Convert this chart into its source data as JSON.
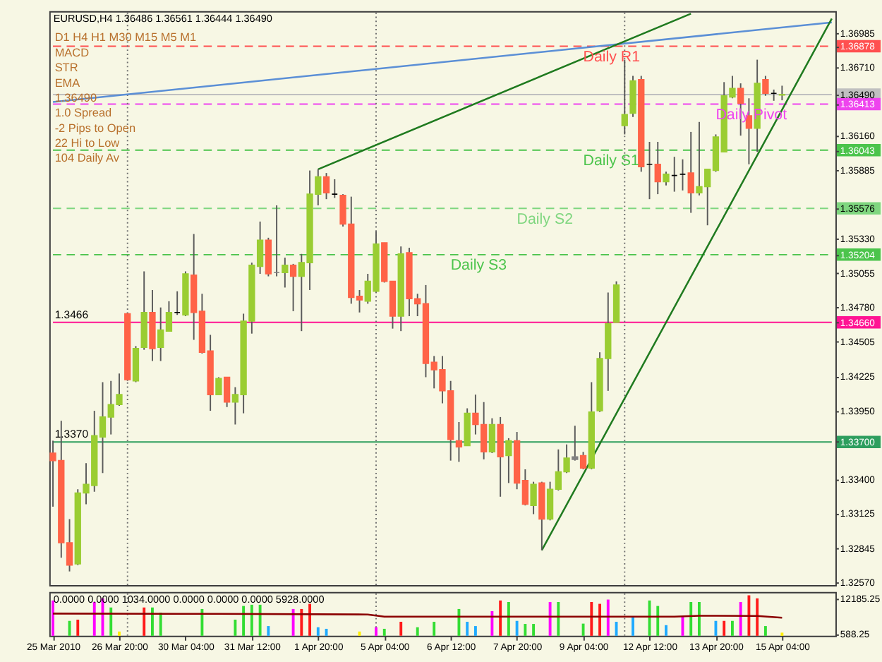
{
  "chart_data": [
    {
      "type": "candlestick",
      "title": "EURUSD,H4 1.36486 1.36561 1.36444 1.36490",
      "categories": [
        "25 Mar 2010",
        null,
        null,
        null,
        null,
        null,
        null,
        null,
        "26 Mar 20:00",
        null,
        null,
        null,
        null,
        null,
        null,
        null,
        "30 Mar 04:00",
        null,
        null,
        null,
        null,
        null,
        null,
        null,
        "31 Mar 12:00",
        null,
        null,
        null,
        null,
        null,
        null,
        null,
        "1 Apr 20:00",
        null,
        null,
        null,
        null,
        null,
        null,
        null,
        "5 Apr 04:00",
        null,
        null,
        null,
        null,
        null,
        null,
        null,
        "6 Apr 12:00",
        null,
        null,
        null,
        null,
        null,
        null,
        null,
        "7 Apr 20:00",
        null,
        null,
        null,
        null,
        null,
        null,
        null,
        "9 Apr 04:00",
        null,
        null,
        null,
        null,
        null,
        null,
        null,
        "12 Apr 12:00",
        null,
        null,
        null,
        null,
        null,
        null,
        null,
        "13 Apr 20:00",
        null,
        null,
        null,
        null,
        null,
        null,
        null,
        "15 Apr 04:00",
        null,
        null,
        null,
        null,
        null,
        null
      ],
      "ohlc": [
        [
          1.3361,
          1.3371,
          1.3318,
          1.3355
        ],
        [
          1.3355,
          1.3387,
          1.3277,
          1.3289
        ],
        [
          1.3289,
          1.3308,
          1.3266,
          1.3271
        ],
        [
          1.3272,
          1.3332,
          1.3271,
          1.3329
        ],
        [
          1.3329,
          1.3353,
          1.332,
          1.3336
        ],
        [
          1.3335,
          1.3395,
          1.333,
          1.3375
        ],
        [
          1.3374,
          1.3418,
          1.3345,
          1.339
        ],
        [
          1.339,
          1.3419,
          1.3376,
          1.34
        ],
        [
          1.34,
          1.3425,
          1.3399,
          1.3408
        ],
        [
          1.3473,
          1.3474,
          1.3419,
          1.342
        ],
        [
          1.3419,
          1.3447,
          1.3418,
          1.3445
        ],
        [
          1.3446,
          1.3507,
          1.3444,
          1.3474
        ],
        [
          1.3474,
          1.3492,
          1.3435,
          1.3445
        ],
        [
          1.3446,
          1.3478,
          1.3435,
          1.346
        ],
        [
          1.3459,
          1.3483,
          1.3459,
          1.3474
        ],
        [
          1.3474,
          1.3491,
          1.3472,
          1.3474
        ],
        [
          1.3472,
          1.3507,
          1.3471,
          1.3505
        ],
        [
          1.3504,
          1.3537,
          1.3452,
          1.3474
        ],
        [
          1.3475,
          1.3489,
          1.3441,
          1.3442
        ],
        [
          1.3443,
          1.3456,
          1.3395,
          1.3408
        ],
        [
          1.3408,
          1.3422,
          1.3408,
          1.3421
        ],
        [
          1.3422,
          1.3422,
          1.3398,
          1.3402
        ],
        [
          1.3402,
          1.3414,
          1.3384,
          1.3408
        ],
        [
          1.3408,
          1.3473,
          1.3393,
          1.3467
        ],
        [
          1.3467,
          1.3514,
          1.3457,
          1.3512
        ],
        [
          1.3511,
          1.3547,
          1.3505,
          1.3532
        ],
        [
          1.3532,
          1.3534,
          1.3503,
          1.3505
        ],
        [
          1.3506,
          1.356,
          1.3503,
          1.3506
        ],
        [
          1.3506,
          1.3518,
          1.3494,
          1.3512
        ],
        [
          1.3512,
          1.3513,
          1.3475,
          1.3503
        ],
        [
          1.3503,
          1.3521,
          1.3459,
          1.3514
        ],
        [
          1.3514,
          1.3588,
          1.3492,
          1.3569
        ],
        [
          1.3569,
          1.3589,
          1.356,
          1.3583
        ],
        [
          1.3583,
          1.3586,
          1.3565,
          1.357
        ],
        [
          1.3569,
          1.3581,
          1.3566,
          1.3569
        ],
        [
          1.3568,
          1.3569,
          1.3543,
          1.3545
        ],
        [
          1.3545,
          1.3567,
          1.3481,
          1.3486
        ],
        [
          1.3487,
          1.3492,
          1.3474,
          1.3484
        ],
        [
          1.3483,
          1.3505,
          1.3481,
          1.3499
        ],
        [
          1.3491,
          1.3539,
          1.349,
          1.3529
        ],
        [
          1.353,
          1.353,
          1.3498,
          1.3499
        ],
        [
          1.3499,
          1.3499,
          1.3461,
          1.3471
        ],
        [
          1.3471,
          1.3527,
          1.3459,
          1.3521
        ],
        [
          1.3522,
          1.3526,
          1.3471,
          1.3485
        ],
        [
          1.3485,
          1.3489,
          1.3471,
          1.3481
        ],
        [
          1.3481,
          1.3496,
          1.3422,
          1.3433
        ],
        [
          1.3434,
          1.3439,
          1.3413,
          1.3428
        ],
        [
          1.3428,
          1.3439,
          1.3401,
          1.3411
        ],
        [
          1.3411,
          1.3419,
          1.3355,
          1.3372
        ],
        [
          1.3371,
          1.3386,
          1.3354,
          1.3366
        ],
        [
          1.3367,
          1.3397,
          1.3367,
          1.3393
        ],
        [
          1.3393,
          1.3408,
          1.3376,
          1.3384
        ],
        [
          1.3384,
          1.3402,
          1.3356,
          1.3362
        ],
        [
          1.3362,
          1.3389,
          1.3361,
          1.3384
        ],
        [
          1.3384,
          1.339,
          1.3326,
          1.3358
        ],
        [
          1.3359,
          1.3373,
          1.3337,
          1.3371
        ],
        [
          1.3371,
          1.3378,
          1.3332,
          1.3337
        ],
        [
          1.3339,
          1.3348,
          1.3319,
          1.332
        ],
        [
          1.3319,
          1.3338,
          1.3312,
          1.3336
        ],
        [
          1.3337,
          1.3338,
          1.3283,
          1.3308
        ],
        [
          1.3308,
          1.3338,
          1.3307,
          1.3332
        ],
        [
          1.3332,
          1.3364,
          1.3331,
          1.3346
        ],
        [
          1.3346,
          1.3368,
          1.3345,
          1.3357
        ],
        [
          1.3356,
          1.3383,
          1.3355,
          1.3358
        ],
        [
          1.3359,
          1.3362,
          1.3348,
          1.3349
        ],
        [
          1.3349,
          1.3418,
          1.3348,
          1.3394
        ],
        [
          1.3395,
          1.3442,
          1.3394,
          1.3437
        ],
        [
          1.3437,
          1.349,
          1.3411,
          1.3465
        ],
        [
          1.3466,
          1.3499,
          1.3466,
          1.3496
        ],
        [
          1.3624,
          1.3677,
          1.3617,
          1.3633
        ],
        [
          1.3634,
          1.3664,
          1.3631,
          1.366
        ],
        [
          1.3661,
          1.3664,
          1.3587,
          1.3591
        ],
        [
          1.3593,
          1.3611,
          1.3565,
          1.3593
        ],
        [
          1.3593,
          1.3611,
          1.3569,
          1.3579
        ],
        [
          1.3579,
          1.3587,
          1.3576,
          1.3585
        ],
        [
          1.3584,
          1.3599,
          1.3571,
          1.3584
        ],
        [
          1.3585,
          1.3597,
          1.3572,
          1.3585
        ],
        [
          1.3586,
          1.3619,
          1.3554,
          1.357
        ],
        [
          1.357,
          1.3627,
          1.3568,
          1.3575
        ],
        [
          1.3575,
          1.3589,
          1.3544,
          1.3589
        ],
        [
          1.3588,
          1.3617,
          1.3587,
          1.3615
        ],
        [
          1.3603,
          1.3659,
          1.3603,
          1.3648
        ],
        [
          1.3647,
          1.3664,
          1.3646,
          1.3654
        ],
        [
          1.3654,
          1.3658,
          1.3616,
          1.3642
        ],
        [
          1.3632,
          1.3646,
          1.3593,
          1.3622
        ],
        [
          1.3622,
          1.3677,
          1.3603,
          1.3658
        ],
        [
          1.3661,
          1.3664,
          1.3648,
          1.365
        ],
        [
          1.365,
          1.3653,
          1.3644,
          1.365
        ],
        [
          1.36486,
          1.36561,
          1.36444,
          1.3649
        ],
        null,
        null,
        null,
        null,
        null,
        null
      ],
      "colors": [
        "#ff6347",
        "#ff6347",
        "#ff6347",
        "#9acd32",
        "#9acd32",
        "#9acd32",
        "#9acd32",
        "#9acd32",
        "#9acd32",
        "#ff6347",
        "#9acd32",
        "#9acd32",
        "#ff6347",
        "#9acd32",
        "#9acd32",
        "#000000",
        "#9acd32",
        "#ff6347",
        "#ff6347",
        "#ff6347",
        "#9acd32",
        "#ff6347",
        "#9acd32",
        "#9acd32",
        "#9acd32",
        "#9acd32",
        "#ff6347",
        "#808080",
        "#9acd32",
        "#ff6347",
        "#9acd32",
        "#9acd32",
        "#9acd32",
        "#ff6347",
        "#000000",
        "#ff6347",
        "#ff6347",
        "#ff6347",
        "#9acd32",
        "#9acd32",
        "#ff6347",
        "#ff6347",
        "#9acd32",
        "#ff6347",
        "#ff6347",
        "#ff6347",
        "#ff6347",
        "#ff6347",
        "#ff6347",
        "#ff6347",
        "#9acd32",
        "#ff6347",
        "#ff6347",
        "#9acd32",
        "#ff6347",
        "#9acd32",
        "#ff6347",
        "#ff6347",
        "#9acd32",
        "#ff6347",
        "#9acd32",
        "#9acd32",
        "#9acd32",
        "#808080",
        "#ff6347",
        "#9acd32",
        "#9acd32",
        "#9acd32",
        "#9acd32",
        "#9acd32",
        "#9acd32",
        "#ff6347",
        "#000000",
        "#ff6347",
        "#9acd32",
        "#000000",
        "#000000",
        "#ff6347",
        "#9acd32",
        "#9acd32",
        "#9acd32",
        "#9acd32",
        "#9acd32",
        "#ff6347",
        "#ff6347",
        "#9acd32",
        "#ff6347",
        "#000000",
        "#9acd32",
        null,
        null,
        null,
        null,
        null,
        null
      ],
      "ylim": [
        1.3255,
        1.3716
      ],
      "yticks": [
        1.36985,
        1.36878,
        {
          "value": 1.3671,
          "label": "1.36710"
        },
        {
          "value": 1.3649,
          "label": "1.36490"
        },
        1.36413,
        {
          "value": 1.3616,
          "label": "1.36160"
        },
        1.36043,
        1.35885,
        1.35576,
        {
          "value": 1.3533,
          "label": "1.35330"
        },
        1.35204,
        1.35055,
        {
          "value": 1.3478,
          "label": "1.34780"
        },
        {
          "value": 1.3466,
          "label": "1.34660"
        },
        1.34505,
        1.34225,
        {
          "value": 1.3395,
          "label": "1.33950"
        },
        {
          "value": 1.337,
          "label": "1.33700"
        },
        {
          "value": 1.334,
          "label": "1.33400"
        },
        1.33125,
        1.32845,
        {
          "value": 1.3257,
          "label": "1.32570"
        }
      ],
      "tick_labels": "y",
      "grid": "x",
      "ref_lines": [
        {
          "axis": "y",
          "value": 1.36878,
          "color": "#ff5050",
          "line_style": "dashed"
        },
        {
          "axis": "y",
          "value": 1.3649,
          "color": "#c0c0c0"
        },
        {
          "axis": "y",
          "value": 1.36413,
          "color": "#ee44ee",
          "line_style": "dashed"
        },
        {
          "axis": "y",
          "value": 1.36043,
          "color": "#4cc44c",
          "line_style": "dashed"
        },
        {
          "axis": "y",
          "value": 1.35576,
          "color": "#7fd67f",
          "line_style": "dashed"
        },
        {
          "axis": "y",
          "value": 1.35204,
          "color": "#4cc44c",
          "line_style": "dashed"
        },
        {
          "axis": "y",
          "value": 1.3466,
          "color": "#ff1493",
          "label": "1.3466"
        },
        {
          "axis": "y",
          "value": 1.337,
          "color": "#2e9e5e",
          "label": "1.3370"
        }
      ],
      "series": [
        {
          "type": "line",
          "color": "#5b8fd6",
          "values": [
            1.3643,
            null,
            null,
            null,
            null,
            null,
            null,
            null,
            null,
            null,
            null,
            null,
            null,
            null,
            null,
            null,
            null,
            null,
            null,
            null,
            null,
            null,
            null,
            null,
            null,
            null,
            null,
            null,
            null,
            null,
            null,
            null,
            null,
            null,
            null,
            null,
            null,
            null,
            null,
            null,
            null,
            null,
            null,
            null,
            null,
            null,
            null,
            null,
            null,
            null,
            null,
            null,
            null,
            null,
            null,
            null,
            null,
            null,
            null,
            null,
            null,
            null,
            null,
            null,
            null,
            null,
            null,
            null,
            null,
            null,
            null,
            null,
            null,
            null,
            null,
            null,
            null,
            null,
            null,
            null,
            null,
            null,
            null,
            null,
            null,
            null,
            null,
            null,
            null,
            null,
            null,
            null,
            null,
            null,
            1.3707
          ]
        },
        {
          "type": "line",
          "color": "#1f7a1f",
          "values": [
            null,
            null,
            null,
            null,
            null,
            null,
            null,
            null,
            null,
            null,
            null,
            null,
            null,
            null,
            null,
            null,
            null,
            null,
            null,
            null,
            null,
            null,
            null,
            null,
            null,
            null,
            null,
            null,
            null,
            null,
            null,
            null,
            1.3589,
            null,
            null,
            null,
            null,
            null,
            null,
            null,
            null,
            null,
            null,
            null,
            null,
            null,
            null,
            null,
            null,
            null,
            null,
            null,
            null,
            null,
            null,
            null,
            null,
            null,
            null,
            null,
            null,
            null,
            null,
            null,
            null,
            null,
            null,
            null,
            null,
            null,
            null,
            null,
            null,
            null,
            null,
            null,
            null,
            1.3714,
            null,
            null,
            null,
            null,
            null,
            null,
            null,
            null,
            null,
            null,
            null,
            null,
            null,
            null,
            null,
            null,
            null
          ]
        },
        {
          "type": "line",
          "color": "#1f7a1f",
          "values": [
            null,
            null,
            null,
            null,
            null,
            null,
            null,
            null,
            null,
            null,
            null,
            null,
            null,
            null,
            null,
            null,
            null,
            null,
            null,
            null,
            null,
            null,
            null,
            null,
            null,
            null,
            null,
            null,
            null,
            null,
            null,
            null,
            null,
            null,
            null,
            null,
            null,
            null,
            null,
            null,
            null,
            null,
            null,
            null,
            null,
            null,
            null,
            null,
            null,
            null,
            null,
            null,
            null,
            null,
            null,
            null,
            null,
            null,
            null,
            1.3283,
            null,
            null,
            null,
            null,
            null,
            null,
            null,
            null,
            null,
            null,
            null,
            null,
            null,
            null,
            null,
            null,
            null,
            null,
            null,
            null,
            null,
            null,
            null,
            null,
            null,
            null,
            null,
            null,
            null,
            null,
            null,
            null,
            null,
            null,
            1.371
          ]
        }
      ],
      "annotations": [
        {
          "text": "Daily R1",
          "x": "9 Apr 04:00",
          "y": 1.36878
        },
        {
          "text": "Daily Pivot",
          "x": "13 Apr 20:00",
          "y": 1.36413
        },
        {
          "text": "Daily S1",
          "x": "9 Apr 04:00",
          "y": 1.36043
        },
        {
          "text": "Daily S2",
          "x": "7 Apr 20:00",
          "y": 1.35576
        },
        {
          "text": "Daily S3",
          "x": "6 Apr 12:00",
          "y": 1.35204
        },
        "D1 H4 H1 M30 M15 M5 M1",
        "MACD",
        "STR",
        "EMA",
        "1.36490",
        "1.0 Spread",
        "-2 Pips to Open",
        "22 Hi to Low",
        "104 Daily Av"
      ]
    },
    {
      "type": "bar",
      "title": "0.0000 0.0000 1034.0000 0.0000 0.0000 0.0000 5928.0000",
      "categories": [
        "25 Mar 2010",
        null,
        null,
        null,
        null,
        null,
        null,
        null,
        "26 Mar 20:00",
        null,
        null,
        null,
        null,
        null,
        null,
        null,
        "30 Mar 04:00",
        null,
        null,
        null,
        null,
        null,
        null,
        null,
        "31 Mar 12:00",
        null,
        null,
        null,
        null,
        null,
        null,
        null,
        "1 Apr 20:00",
        null,
        null,
        null,
        null,
        null,
        null,
        null,
        "5 Apr 04:00",
        null,
        null,
        null,
        null,
        null,
        null,
        null,
        "6 Apr 12:00",
        null,
        null,
        null,
        null,
        null,
        null,
        null,
        "7 Apr 20:00",
        null,
        null,
        null,
        null,
        null,
        null,
        null,
        "9 Apr 04:00",
        null,
        null,
        null,
        null,
        null,
        null,
        null,
        "12 Apr 12:00",
        null,
        null,
        null,
        null,
        null,
        null,
        null,
        "13 Apr 20:00",
        null,
        null,
        null,
        null,
        null,
        null,
        null,
        "15 Apr 04:00",
        null,
        null,
        null,
        null,
        null,
        null
      ],
      "ylim": [
        0,
        14400
      ],
      "yticks": [
        12185.25,
        588.25
      ],
      "grid": "x",
      "series": [
        {
          "type": "bar",
          "values": [
            11600,
            null,
            4900,
            5300,
            null,
            11100,
            12300,
            9300,
            1400,
            null,
            null,
            9300,
            9300,
            7600,
            null,
            null,
            null,
            null,
            8800,
            null,
            null,
            null,
            5300,
            9800,
            10200,
            10200,
            3200,
            null,
            null,
            8800,
            8800,
            10500,
            2800,
            2300,
            null,
            null,
            null,
            1400,
            null,
            2800,
            2300,
            null,
            4600,
            null,
            2800,
            null,
            4600,
            null,
            null,
            8800,
            4600,
            3200,
            null,
            8100,
            11600,
            11100,
            4900,
            3900,
            3900,
            null,
            11100,
            11100,
            null,
            null,
            4000,
            11100,
            10500,
            11900,
            4600,
            null,
            6300,
            null,
            11600,
            9800,
            3500,
            null,
            6300,
            11100,
            11100,
            null,
            4900,
            4900,
            4900,
            11100,
            13300,
            12300,
            3200,
            null,
            1034,
            null,
            null,
            null,
            null,
            null,
            null
          ],
          "colors": [
            "#ff00ff",
            null,
            "#33dd33",
            "#ff1a1a",
            null,
            "#ff00ff",
            "#ff00ff",
            "#33dd33",
            "#ffee00",
            null,
            null,
            "#ff1a1a",
            "#33dd33",
            "#33dd33",
            null,
            null,
            null,
            null,
            "#33dd33",
            null,
            null,
            null,
            "#33dd33",
            "#33dd33",
            "#33dd33",
            "#33dd33",
            "#1eaaff",
            null,
            null,
            "#ff00ff",
            "#ff1a1a",
            "#ff1a1a",
            "#1eaaff",
            "#1eaaff",
            null,
            null,
            null,
            "#ffee00",
            null,
            "#ff00ff",
            "#33dd33",
            null,
            "#ff1a1a",
            null,
            "#33dd33",
            null,
            "#33dd33",
            null,
            null,
            "#33dd33",
            "#1eaaff",
            "#1eaaff",
            null,
            "#ff00ff",
            "#ff1a1a",
            "#33dd33",
            "#1eaaff",
            "#33dd33",
            "#33dd33",
            null,
            "#ff00ff",
            "#33dd33",
            null,
            null,
            "#33dd33",
            "#ff1a1a",
            "#ff1a1a",
            "#ff00ff",
            "#1eaaff",
            null,
            "#1eaaff",
            null,
            "#33dd33",
            "#33dd33",
            "#1eaaff",
            null,
            "#ff00ff",
            "#33dd33",
            "#33dd33",
            null,
            "#1eaaff",
            "#ff1a1a",
            "#33dd33",
            "#ff00ff",
            "#ff1a1a",
            "#ff1a1a",
            "#33dd33",
            null,
            "#ffee00",
            null,
            null,
            null,
            null,
            null,
            null
          ]
        },
        {
          "type": "line",
          "color": "#8b0000",
          "values": [
            7300,
            null,
            null,
            null,
            null,
            null,
            null,
            null,
            null,
            null,
            null,
            null,
            null,
            null,
            null,
            null,
            null,
            null,
            null,
            null,
            7200,
            null,
            null,
            null,
            null,
            null,
            null,
            null,
            null,
            null,
            null,
            null,
            null,
            null,
            null,
            null,
            null,
            null,
            7000,
            null,
            6300,
            null,
            null,
            null,
            null,
            null,
            null,
            null,
            null,
            null,
            null,
            null,
            null,
            null,
            null,
            null,
            null,
            null,
            null,
            null,
            null,
            null,
            null,
            null,
            null,
            null,
            null,
            null,
            null,
            null,
            null,
            null,
            null,
            null,
            null,
            6300,
            null,
            null,
            6600,
            null,
            null,
            null,
            null,
            null,
            null,
            6500,
            null,
            null,
            5928,
            null,
            null,
            null,
            null,
            null,
            null
          ]
        }
      ]
    }
  ]
}
